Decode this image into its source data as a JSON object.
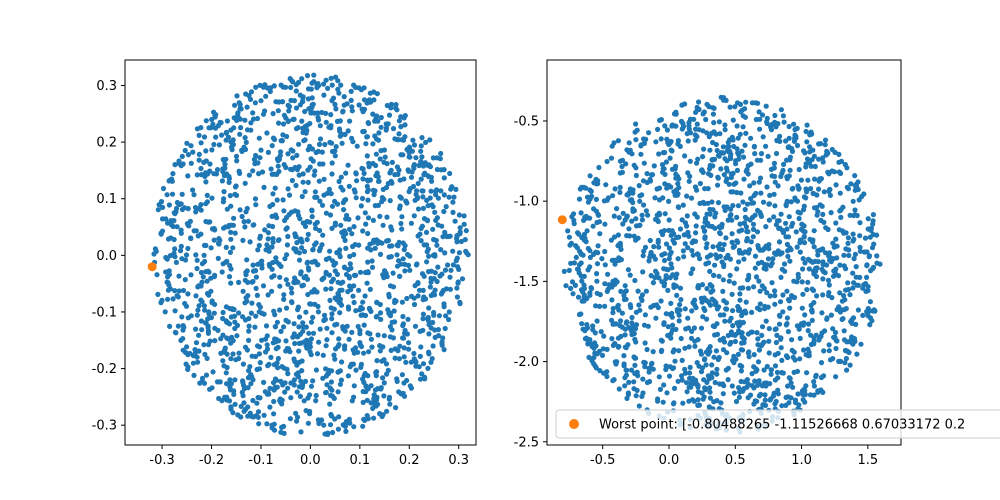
{
  "chart_data": [
    {
      "type": "scatter",
      "xlim": [
        -0.375,
        0.335
      ],
      "ylim": [
        -0.335,
        0.345
      ],
      "xticks": [
        "-0.3",
        "-0.2",
        "-0.1",
        "0.0",
        "0.1",
        "0.2",
        "0.3"
      ],
      "yticks": [
        "-0.3",
        "-0.2",
        "-0.1",
        "0.0",
        "0.1",
        "0.2",
        "0.3"
      ],
      "grid": false,
      "series": [
        {
          "color": "#1f77b4",
          "count": 1800,
          "center": [
            0.0,
            0.0
          ],
          "radius": 0.32,
          "shape": "disc"
        },
        {
          "color": "#ff7f0e",
          "points": [
            [
              -0.32,
              -0.02
            ]
          ]
        }
      ]
    },
    {
      "type": "scatter",
      "xlim": [
        -0.92,
        1.75
      ],
      "ylim": [
        -2.52,
        -0.12
      ],
      "xticks": [
        "-0.5",
        "0.0",
        "0.5",
        "1.0",
        "1.5"
      ],
      "yticks": [
        "-2.5",
        "-2.0",
        "-1.5",
        "-1.0",
        "-0.5"
      ],
      "grid": false,
      "legend_position": "lower-right",
      "legend": [
        "Worst point: [-0.80488265 -1.11526668  0.67033172  0.2"
      ],
      "series": [
        {
          "color": "#1f77b4",
          "count": 1800,
          "center": [
            0.4,
            -1.4
          ],
          "radius_x": 1.2,
          "radius_y": 1.05,
          "shape": "ellipse"
        },
        {
          "name": "Worst point: [-0.80488265 -1.11526668  0.67033172  0.2",
          "color": "#ff7f0e",
          "points": [
            [
              -0.80488265,
              -1.11526668
            ]
          ]
        }
      ]
    }
  ]
}
